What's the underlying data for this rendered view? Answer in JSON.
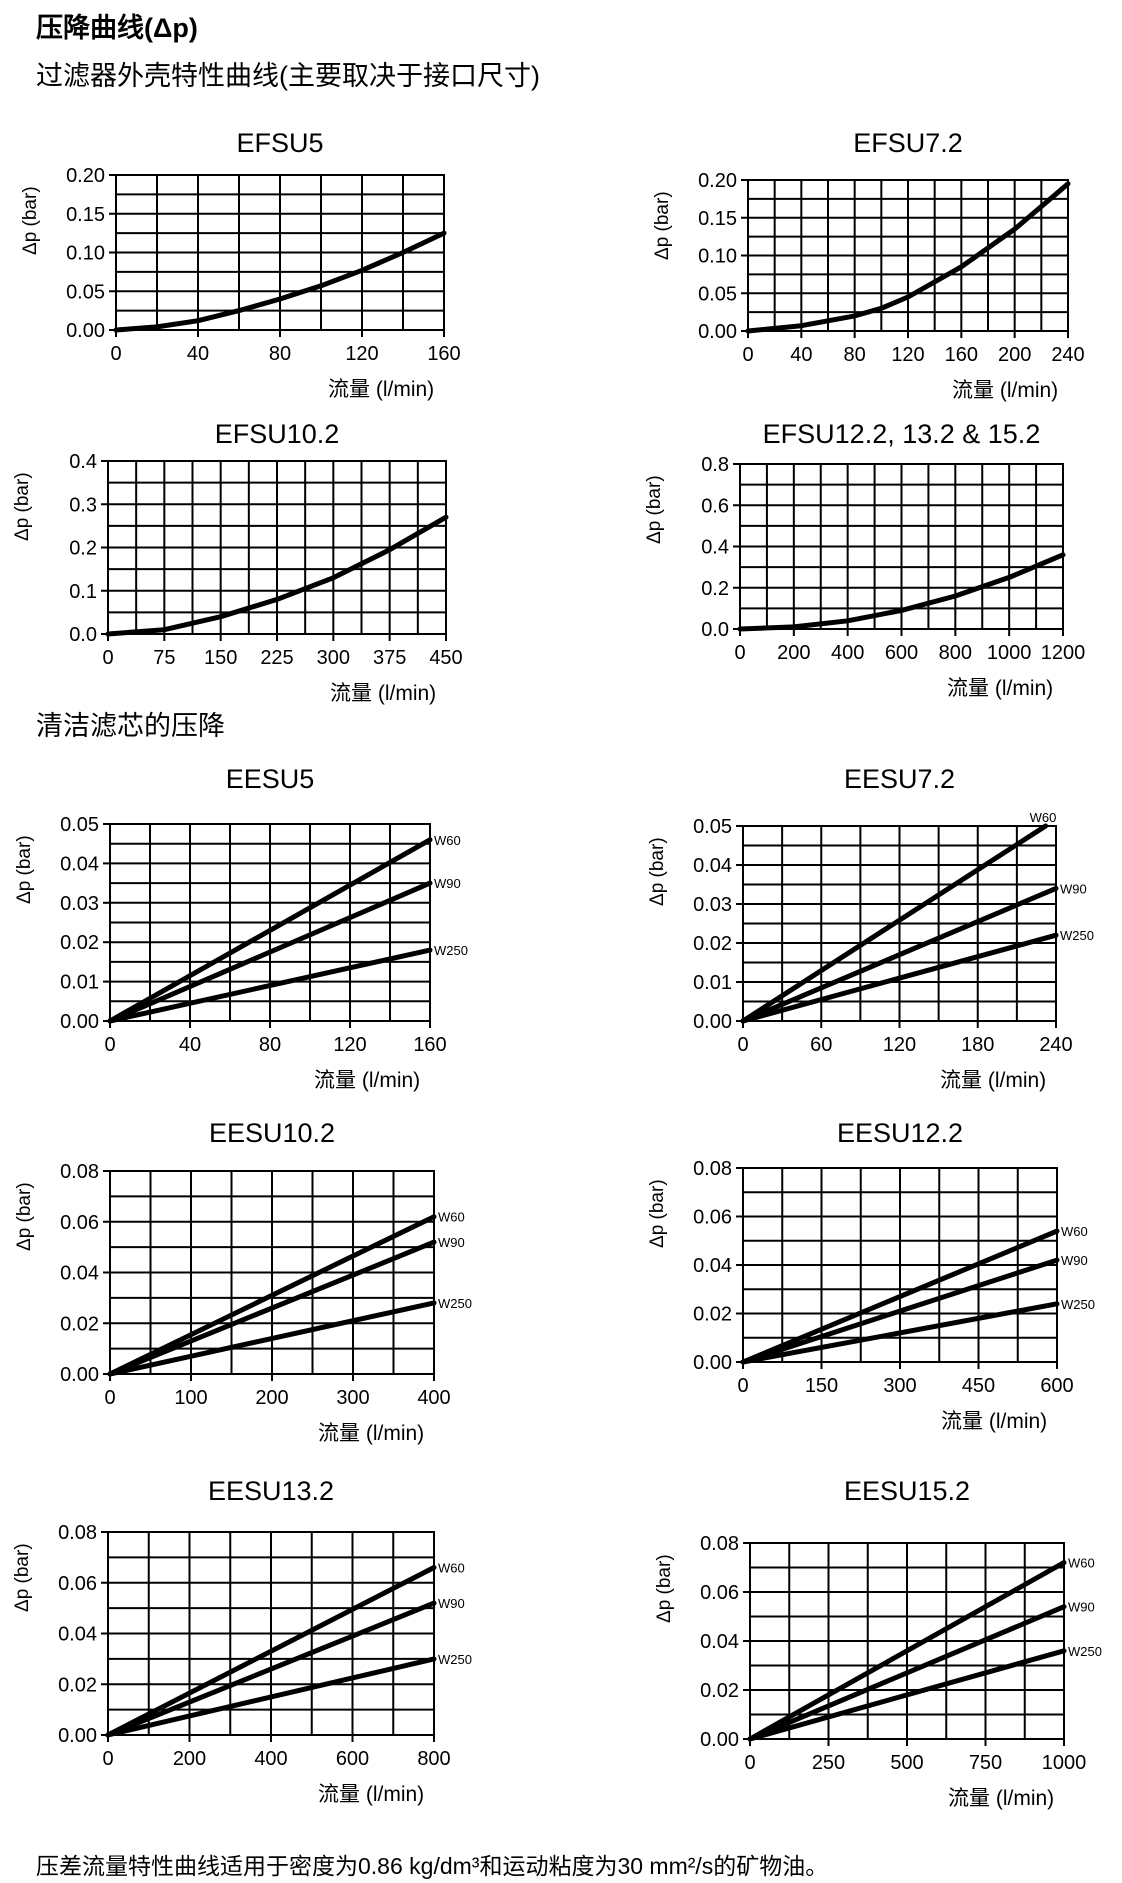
{
  "header": {
    "title": "压降曲线(Δp)",
    "subtitle": "过滤器外壳特性曲线(主要取决于接口尺寸)",
    "section2": "清洁滤芯的压降"
  },
  "footer": "压差流量特性曲线适用于密度为0.86 kg/dm³和运动粘度为30 mm²/s的矿物油。",
  "axis": {
    "ylabel": "Δp (bar)",
    "xlabel": "流量 (l/min)"
  },
  "chart_data": [
    {
      "type": "line",
      "title": "EFSU5",
      "xlim": [
        0,
        160
      ],
      "ylim": [
        0,
        0.2
      ],
      "xticks": [
        "0",
        "40",
        "80",
        "120",
        "160"
      ],
      "yticks": [
        "0.00",
        "0.05",
        "0.10",
        "0.15",
        "0.20"
      ],
      "xgrid": 8,
      "ygrid": 8,
      "series": [
        {
          "name": "",
          "points": [
            [
              0,
              0
            ],
            [
              20,
              0.004
            ],
            [
              40,
              0.012
            ],
            [
              60,
              0.025
            ],
            [
              80,
              0.04
            ],
            [
              100,
              0.057
            ],
            [
              120,
              0.077
            ],
            [
              140,
              0.1
            ],
            [
              160,
              0.125
            ]
          ]
        }
      ]
    },
    {
      "type": "line",
      "title": "EFSU7.2",
      "xlim": [
        0,
        240
      ],
      "ylim": [
        0,
        0.2
      ],
      "xticks": [
        "0",
        "40",
        "80",
        "120",
        "160",
        "200",
        "240"
      ],
      "yticks": [
        "0.00",
        "0.05",
        "0.10",
        "0.15",
        "0.20"
      ],
      "xgrid": 12,
      "ygrid": 8,
      "series": [
        {
          "name": "",
          "points": [
            [
              0,
              0
            ],
            [
              40,
              0.007
            ],
            [
              80,
              0.02
            ],
            [
              100,
              0.03
            ],
            [
              120,
              0.045
            ],
            [
              160,
              0.085
            ],
            [
              200,
              0.135
            ],
            [
              240,
              0.195
            ]
          ]
        }
      ]
    },
    {
      "type": "line",
      "title": "EFSU10.2",
      "xlim": [
        0,
        450
      ],
      "ylim": [
        0,
        0.4
      ],
      "xticks": [
        "0",
        "75",
        "150",
        "225",
        "300",
        "375",
        "450"
      ],
      "yticks": [
        "0.0",
        "0.1",
        "0.2",
        "0.3",
        "0.4"
      ],
      "xgrid": 12,
      "ygrid": 8,
      "series": [
        {
          "name": "",
          "points": [
            [
              0,
              0
            ],
            [
              75,
              0.01
            ],
            [
              150,
              0.04
            ],
            [
              225,
              0.08
            ],
            [
              300,
              0.13
            ],
            [
              375,
              0.195
            ],
            [
              450,
              0.27
            ]
          ]
        }
      ]
    },
    {
      "type": "line",
      "title": "EFSU12.2, 13.2 & 15.2",
      "xlim": [
        0,
        1200
      ],
      "ylim": [
        0,
        0.8
      ],
      "xticks": [
        "0",
        "200",
        "400",
        "600",
        "800",
        "1000",
        "1200"
      ],
      "yticks": [
        "0.0",
        "0.2",
        "0.4",
        "0.6",
        "0.8"
      ],
      "xgrid": 12,
      "ygrid": 8,
      "series": [
        {
          "name": "",
          "points": [
            [
              0,
              0
            ],
            [
              200,
              0.01
            ],
            [
              400,
              0.04
            ],
            [
              600,
              0.09
            ],
            [
              800,
              0.16
            ],
            [
              1000,
              0.25
            ],
            [
              1200,
              0.36
            ]
          ]
        }
      ]
    },
    {
      "type": "line",
      "title": "EESU5",
      "xlim": [
        0,
        160
      ],
      "ylim": [
        0,
        0.05
      ],
      "xticks": [
        "0",
        "40",
        "80",
        "120",
        "160"
      ],
      "yticks": [
        "0.00",
        "0.01",
        "0.02",
        "0.03",
        "0.04",
        "0.05"
      ],
      "xgrid": 8,
      "ygrid": 10,
      "series": [
        {
          "name": "W60",
          "points": [
            [
              0,
              0
            ],
            [
              160,
              0.046
            ]
          ]
        },
        {
          "name": "W90",
          "points": [
            [
              0,
              0
            ],
            [
              160,
              0.035
            ]
          ]
        },
        {
          "name": "W250",
          "points": [
            [
              0,
              0
            ],
            [
              160,
              0.018
            ]
          ]
        }
      ]
    },
    {
      "type": "line",
      "title": "EESU7.2",
      "xlim": [
        0,
        240
      ],
      "ylim": [
        0,
        0.05
      ],
      "xticks": [
        "0",
        "60",
        "120",
        "180",
        "240"
      ],
      "yticks": [
        "0.00",
        "0.01",
        "0.02",
        "0.03",
        "0.04",
        "0.05"
      ],
      "xgrid": 8,
      "ygrid": 10,
      "series": [
        {
          "name": "W60",
          "points": [
            [
              0,
              0
            ],
            [
              232,
              0.05
            ]
          ]
        },
        {
          "name": "W90",
          "points": [
            [
              0,
              0
            ],
            [
              240,
              0.034
            ]
          ]
        },
        {
          "name": "W250",
          "points": [
            [
              0,
              0
            ],
            [
              240,
              0.022
            ]
          ]
        }
      ]
    },
    {
      "type": "line",
      "title": "EESU10.2",
      "xlim": [
        0,
        400
      ],
      "ylim": [
        0,
        0.08
      ],
      "xticks": [
        "0",
        "100",
        "200",
        "300",
        "400"
      ],
      "yticks": [
        "0.00",
        "0.02",
        "0.04",
        "0.06",
        "0.08"
      ],
      "xgrid": 8,
      "ygrid": 8,
      "series": [
        {
          "name": "W60",
          "points": [
            [
              0,
              0
            ],
            [
              400,
              0.062
            ]
          ]
        },
        {
          "name": "W90",
          "points": [
            [
              0,
              0
            ],
            [
              400,
              0.052
            ]
          ]
        },
        {
          "name": "W250",
          "points": [
            [
              0,
              0
            ],
            [
              400,
              0.028
            ]
          ]
        }
      ]
    },
    {
      "type": "line",
      "title": "EESU12.2",
      "xlim": [
        0,
        600
      ],
      "ylim": [
        0,
        0.08
      ],
      "xticks": [
        "0",
        "150",
        "300",
        "450",
        "600"
      ],
      "yticks": [
        "0.00",
        "0.02",
        "0.04",
        "0.06",
        "0.08"
      ],
      "xgrid": 8,
      "ygrid": 8,
      "series": [
        {
          "name": "W60",
          "points": [
            [
              0,
              0
            ],
            [
              600,
              0.054
            ]
          ]
        },
        {
          "name": "W90",
          "points": [
            [
              0,
              0
            ],
            [
              600,
              0.042
            ]
          ]
        },
        {
          "name": "W250",
          "points": [
            [
              0,
              0
            ],
            [
              600,
              0.024
            ]
          ]
        }
      ]
    },
    {
      "type": "line",
      "title": "EESU13.2",
      "xlim": [
        0,
        800
      ],
      "ylim": [
        0,
        0.08
      ],
      "xticks": [
        "0",
        "200",
        "400",
        "600",
        "800"
      ],
      "yticks": [
        "0.00",
        "0.02",
        "0.04",
        "0.06",
        "0.08"
      ],
      "xgrid": 8,
      "ygrid": 8,
      "series": [
        {
          "name": "W60",
          "points": [
            [
              0,
              0
            ],
            [
              800,
              0.066
            ]
          ]
        },
        {
          "name": "W90",
          "points": [
            [
              0,
              0
            ],
            [
              800,
              0.052
            ]
          ]
        },
        {
          "name": "W250",
          "points": [
            [
              0,
              0
            ],
            [
              800,
              0.03
            ]
          ]
        }
      ]
    },
    {
      "type": "line",
      "title": "EESU15.2",
      "xlim": [
        0,
        1000
      ],
      "ylim": [
        0,
        0.08
      ],
      "xticks": [
        "0",
        "250",
        "500",
        "750",
        "1000"
      ],
      "yticks": [
        "0.00",
        "0.02",
        "0.04",
        "0.06",
        "0.08"
      ],
      "xgrid": 8,
      "ygrid": 8,
      "series": [
        {
          "name": "W60",
          "points": [
            [
              0,
              0
            ],
            [
              1000,
              0.072
            ]
          ]
        },
        {
          "name": "W90",
          "points": [
            [
              0,
              0
            ],
            [
              1000,
              0.054
            ]
          ]
        },
        {
          "name": "W250",
          "points": [
            [
              0,
              0
            ],
            [
              1000,
              0.036
            ]
          ]
        }
      ]
    }
  ]
}
